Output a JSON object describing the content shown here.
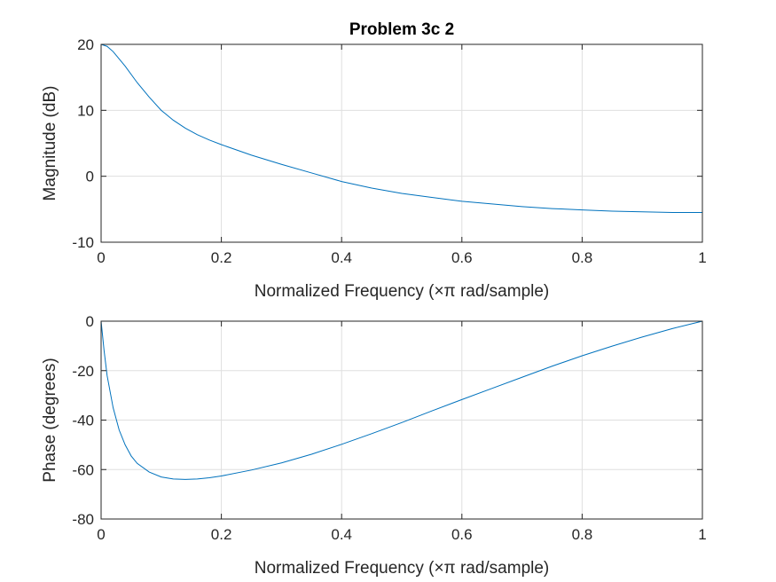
{
  "colors": {
    "line": "#0072BD",
    "grid": "#dfdfdf",
    "axis": "#262626",
    "background": "#ffffff"
  },
  "chart_data": [
    {
      "type": "line",
      "title": "Problem 3c 2",
      "xlabel": "Normalized Frequency  (×π rad/sample)",
      "ylabel": "Magnitude (dB)",
      "xlim": [
        0,
        1
      ],
      "ylim": [
        -10,
        20
      ],
      "xticks": [
        0,
        0.2,
        0.4,
        0.6,
        0.8,
        1
      ],
      "yticks": [
        -10,
        0,
        10,
        20
      ],
      "xtick_labels": [
        "0",
        "0.2",
        "0.4",
        "0.6",
        "0.8",
        "1"
      ],
      "ytick_labels": [
        "-10",
        "0",
        "10",
        "20"
      ],
      "grid": true,
      "series": [
        {
          "x": [
            0,
            0.01,
            0.02,
            0.04,
            0.06,
            0.08,
            0.1,
            0.12,
            0.14,
            0.16,
            0.18,
            0.2,
            0.25,
            0.3,
            0.35,
            0.4,
            0.45,
            0.5,
            0.55,
            0.6,
            0.65,
            0.7,
            0.75,
            0.8,
            0.85,
            0.9,
            0.95,
            1
          ],
          "y": [
            20,
            19.7,
            18.9,
            16.7,
            14.2,
            12.0,
            10.0,
            8.5,
            7.3,
            6.3,
            5.5,
            4.8,
            3.2,
            1.8,
            0.5,
            -0.8,
            -1.8,
            -2.6,
            -3.2,
            -3.8,
            -4.2,
            -4.6,
            -4.9,
            -5.1,
            -5.3,
            -5.4,
            -5.5,
            -5.5
          ]
        }
      ]
    },
    {
      "type": "line",
      "title": "",
      "xlabel": "Normalized Frequency  (×π rad/sample)",
      "ylabel": "Phase (degrees)",
      "xlim": [
        0,
        1
      ],
      "ylim": [
        -80,
        0
      ],
      "xticks": [
        0,
        0.2,
        0.4,
        0.6,
        0.8,
        1
      ],
      "yticks": [
        -80,
        -60,
        -40,
        -20,
        0
      ],
      "xtick_labels": [
        "0",
        "0.2",
        "0.4",
        "0.6",
        "0.8",
        "1"
      ],
      "ytick_labels": [
        "-80",
        "-60",
        "-40",
        "-20",
        "0"
      ],
      "grid": true,
      "series": [
        {
          "x": [
            0,
            0.005,
            0.01,
            0.02,
            0.03,
            0.04,
            0.05,
            0.06,
            0.08,
            0.1,
            0.12,
            0.14,
            0.16,
            0.18,
            0.2,
            0.25,
            0.3,
            0.35,
            0.4,
            0.45,
            0.5,
            0.55,
            0.6,
            0.65,
            0.7,
            0.75,
            0.8,
            0.85,
            0.9,
            0.95,
            1
          ],
          "y": [
            0,
            -12,
            -22,
            -35,
            -44,
            -50,
            -54.5,
            -57.5,
            -61,
            -63,
            -63.8,
            -64,
            -63.8,
            -63.3,
            -62.6,
            -60.2,
            -57.3,
            -53.8,
            -49.8,
            -45.5,
            -41,
            -36.3,
            -31.7,
            -27.2,
            -22.7,
            -18.2,
            -14,
            -10.1,
            -6.4,
            -3,
            0
          ]
        }
      ]
    }
  ]
}
